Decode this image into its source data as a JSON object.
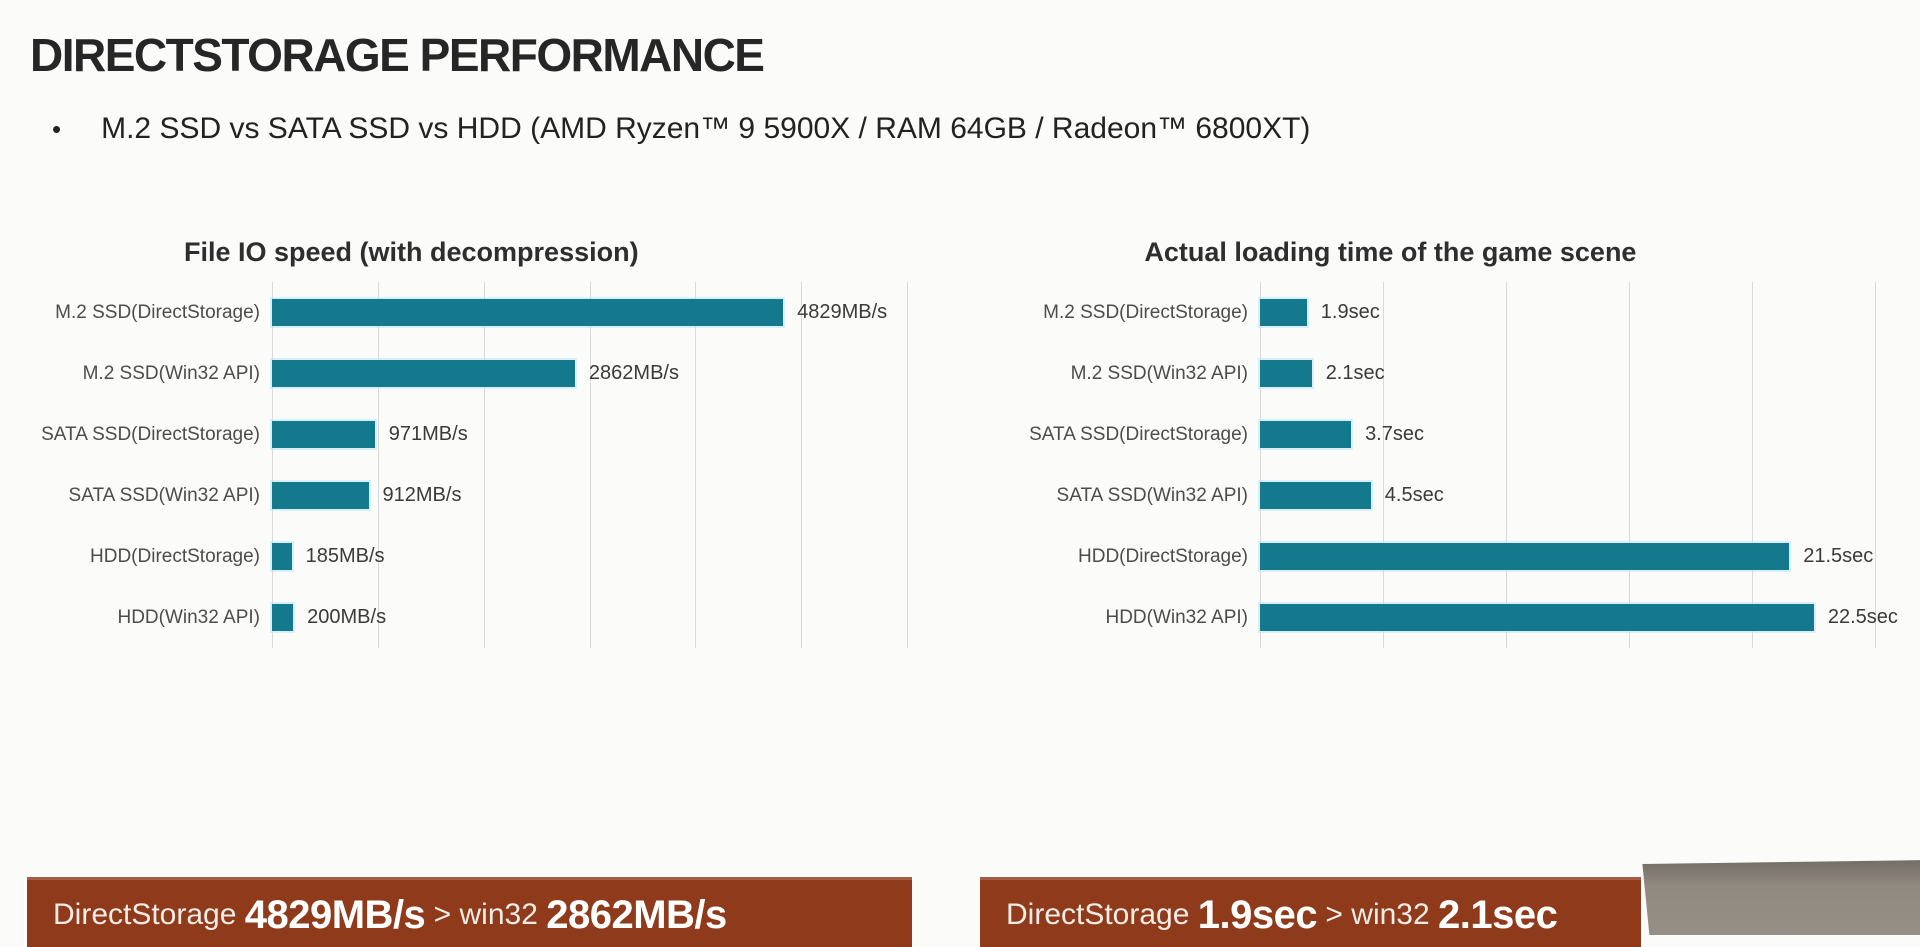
{
  "page": {
    "title": "DIRECTSTORAGE PERFORMANCE",
    "bullet_marker": "•",
    "bullet": "M.2 SSD vs SATA SSD vs HDD (AMD Ryzen™ 9 5900X / RAM 64GB / Radeon™ 6800XT)"
  },
  "chart_data": [
    {
      "type": "bar",
      "orientation": "horizontal",
      "title": "File IO speed (with decompression)",
      "categories": [
        "M.2 SSD(DirectStorage)",
        "M.2 SSD(Win32 API)",
        "SATA SSD(DirectStorage)",
        "SATA SSD(Win32 API)",
        "HDD(DirectStorage)",
        "HDD(Win32 API)"
      ],
      "values": [
        4829,
        2862,
        971,
        912,
        185,
        200
      ],
      "value_labels": [
        "4829MB/s",
        "2862MB/s",
        "971MB/s",
        "912MB/s",
        "185MB/s",
        "200MB/s"
      ],
      "unit": "MB/s",
      "xlim": [
        0,
        6500
      ],
      "gridline_interval": 1000,
      "grid": true,
      "legend": "none"
    },
    {
      "type": "bar",
      "orientation": "horizontal",
      "title": "Actual loading time of the game scene",
      "categories": [
        "M.2 SSD(DirectStorage)",
        "M.2 SSD(Win32 API)",
        "SATA SSD(DirectStorage)",
        "SATA SSD(Win32 API)",
        "HDD(DirectStorage)",
        "HDD(Win32 API)"
      ],
      "values": [
        1.9,
        2.1,
        3.7,
        4.5,
        21.5,
        22.5
      ],
      "value_labels": [
        "1.9sec",
        "2.1sec",
        "3.7sec",
        "4.5sec",
        "21.5sec",
        "22.5sec"
      ],
      "unit": "sec",
      "xlim": [
        0,
        26
      ],
      "gridline_interval": 5,
      "grid": true,
      "legend": "none"
    }
  ],
  "banners": [
    {
      "segments": [
        {
          "text": "DirectStorage ",
          "bold": false
        },
        {
          "text": "4829MB/s",
          "bold": true
        },
        {
          "text": " > win32 ",
          "bold": false
        },
        {
          "text": "2862MB/s",
          "bold": true
        }
      ]
    },
    {
      "segments": [
        {
          "text": "DirectStorage ",
          "bold": false
        },
        {
          "text": "1.9sec",
          "bold": true
        },
        {
          "text": " > win32 ",
          "bold": false
        },
        {
          "text": "2.1sec",
          "bold": true
        }
      ]
    }
  ],
  "colors": {
    "bar": "#15798e",
    "bar_edge": "#bce8f0",
    "banner_background": "#8e3a1b",
    "gridline": "#d9d9d9",
    "desk_gray": "#908a81",
    "title_text": "#262626",
    "label_text": "#4c4c4c"
  }
}
